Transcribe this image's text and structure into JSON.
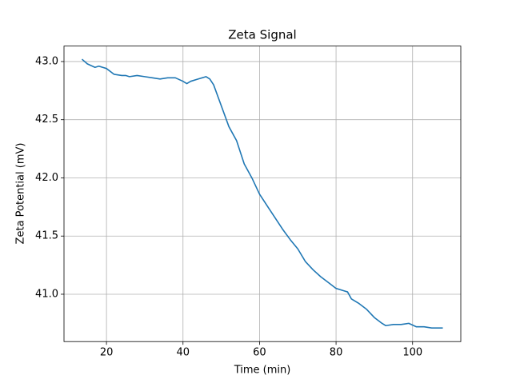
{
  "chart_data": {
    "type": "line",
    "title": "Zeta Signal",
    "xlabel": "Time (min)",
    "ylabel": "Zeta Potential (mV)",
    "x": [
      13.6,
      15,
      17,
      18,
      20,
      22,
      24,
      25,
      26,
      28,
      30,
      32,
      34,
      36,
      38,
      40,
      41,
      42,
      44,
      46,
      47,
      48,
      50,
      52,
      54,
      56,
      58,
      60,
      62,
      64,
      66,
      68,
      70,
      72,
      74,
      76,
      78,
      80,
      82,
      83,
      84,
      86,
      88,
      90,
      92,
      93,
      95,
      97,
      99,
      101,
      103,
      105,
      107.9
    ],
    "series": [
      {
        "name": "Zeta",
        "color": "#1f77b4",
        "values": [
          43.02,
          42.98,
          42.95,
          42.96,
          42.94,
          42.89,
          42.88,
          42.88,
          42.87,
          42.88,
          42.87,
          42.86,
          42.85,
          42.86,
          42.86,
          42.83,
          42.81,
          42.83,
          42.85,
          42.87,
          42.85,
          42.8,
          42.62,
          42.44,
          42.32,
          42.12,
          42.0,
          41.86,
          41.76,
          41.66,
          41.56,
          41.47,
          41.39,
          41.28,
          41.21,
          41.15,
          41.1,
          41.05,
          41.03,
          41.02,
          40.96,
          40.92,
          40.87,
          40.8,
          40.75,
          40.73,
          40.74,
          40.74,
          40.75,
          40.72,
          40.72,
          40.71,
          40.71
        ]
      }
    ],
    "xlim": [
      8.9,
      112.6
    ],
    "ylim": [
      40.593,
      43.133
    ],
    "xticks": [
      20,
      40,
      60,
      80,
      100
    ],
    "yticks": [
      {
        "value": 41,
        "label": "41.0"
      },
      41.5,
      {
        "value": 42,
        "label": "42.0"
      },
      42.5,
      {
        "value": 43,
        "label": "43.0"
      }
    ],
    "grid": true
  }
}
